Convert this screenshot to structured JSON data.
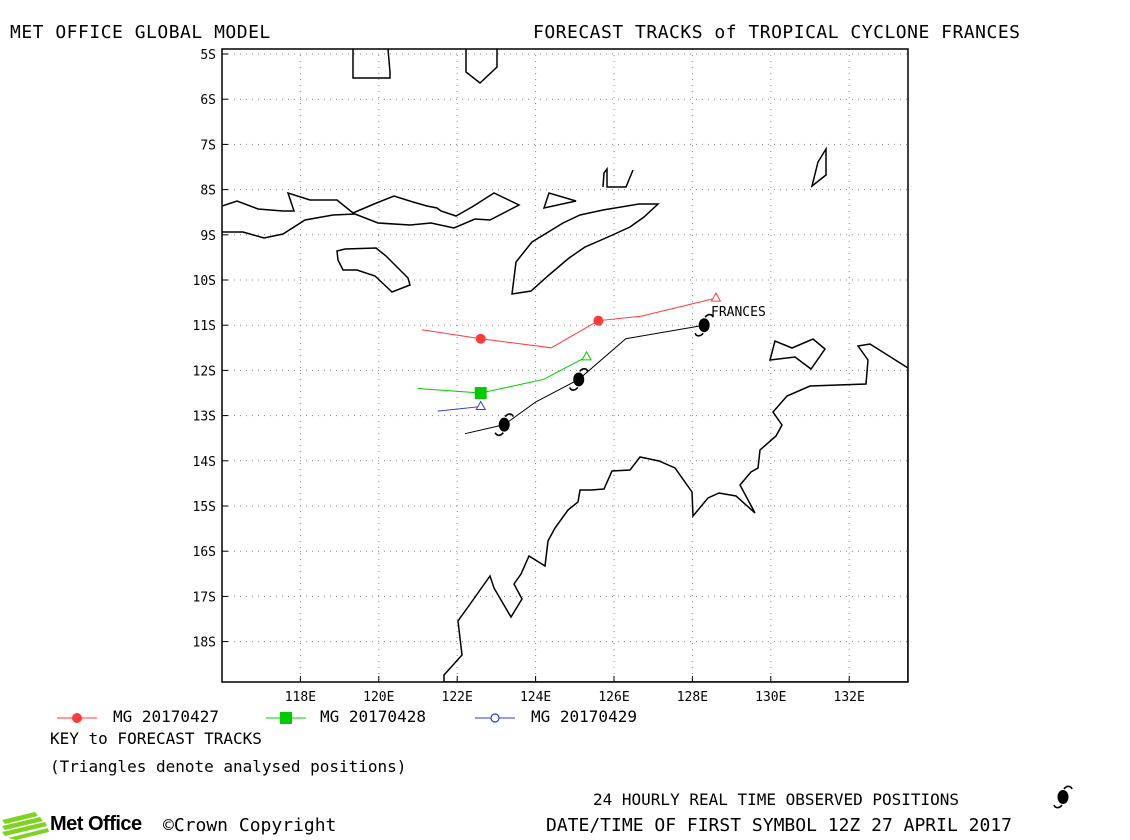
{
  "header": {
    "left_title": "MET OFFICE GLOBAL MODEL",
    "right_title": "FORECAST TRACKS of TROPICAL CYCLONE FRANCES"
  },
  "map": {
    "lon_range": [
      116,
      133.5
    ],
    "lat_range": [
      -5,
      -18.9
    ],
    "lat_ticks": [
      "5S",
      "6S",
      "7S",
      "8S",
      "9S",
      "10S",
      "11S",
      "12S",
      "13S",
      "14S",
      "15S",
      "16S",
      "17S",
      "18S"
    ],
    "lon_ticks": [
      "118E",
      "120E",
      "122E",
      "124E",
      "126E",
      "128E",
      "130E",
      "132E"
    ],
    "grid": "dotted",
    "storm_label": "FRANCES",
    "colors": {
      "mg20170427": "#ff3b3b",
      "mg20170428": "#00cc00",
      "mg20170429": "#2a3fd6",
      "observed": "#000000"
    },
    "observed_track": [
      {
        "lon": 122.2,
        "lat": -13.4
      },
      {
        "lon": 123.2,
        "lat": -13.2
      },
      {
        "lon": 124.0,
        "lat": -12.7
      },
      {
        "lon": 125.1,
        "lat": -12.2
      },
      {
        "lon": 126.3,
        "lat": -11.3
      },
      {
        "lon": 128.3,
        "lat": -11.0
      }
    ],
    "observed_symbols": [
      {
        "lon": 123.2,
        "lat": -13.2
      },
      {
        "lon": 125.1,
        "lat": -12.2
      },
      {
        "lon": 128.3,
        "lat": -11.0
      }
    ],
    "forecast_tracks": [
      {
        "name": "MG 20170427",
        "marker": "circle",
        "color_key": "mg20170427",
        "analysed": {
          "lon": 128.6,
          "lat": -10.4
        },
        "points": [
          {
            "lon": 128.6,
            "lat": -10.4
          },
          {
            "lon": 126.7,
            "lat": -10.8
          },
          {
            "lon": 125.6,
            "lat": -10.9
          },
          {
            "lon": 124.4,
            "lat": -11.5
          },
          {
            "lon": 122.6,
            "lat": -11.3
          },
          {
            "lon": 121.1,
            "lat": -11.1
          }
        ],
        "markers": [
          {
            "lon": 125.6,
            "lat": -10.9
          },
          {
            "lon": 122.6,
            "lat": -11.3
          }
        ]
      },
      {
        "name": "MG 20170428",
        "marker": "square",
        "color_key": "mg20170428",
        "analysed": {
          "lon": 125.3,
          "lat": -11.7
        },
        "points": [
          {
            "lon": 125.3,
            "lat": -11.7
          },
          {
            "lon": 124.2,
            "lat": -12.2
          },
          {
            "lon": 122.6,
            "lat": -12.5
          },
          {
            "lon": 121.0,
            "lat": -12.4
          }
        ],
        "markers": [
          {
            "lon": 122.6,
            "lat": -12.5
          }
        ]
      },
      {
        "name": "MG 20170429",
        "marker": "circle-open",
        "color_key": "mg20170429",
        "analysed": {
          "lon": 122.6,
          "lat": -12.8
        },
        "points": [
          {
            "lon": 122.6,
            "lat": -12.8
          },
          {
            "lon": 121.5,
            "lat": -12.9
          }
        ],
        "markers": []
      }
    ]
  },
  "legend": {
    "items": [
      {
        "label": "MG 20170427",
        "marker": "circle",
        "color_key": "mg20170427"
      },
      {
        "label": "MG 20170428",
        "marker": "square",
        "color_key": "mg20170428"
      },
      {
        "label": "MG 20170429",
        "marker": "circle-open",
        "color_key": "mg20170429"
      }
    ],
    "key_title": "KEY to FORECAST TRACKS",
    "key_note": "(Triangles denote analysed positions)"
  },
  "footer": {
    "logo_text": "Met Office",
    "copyright": "©Crown Copyright",
    "observed_label": "24 HOURLY REAL TIME OBSERVED POSITIONS",
    "datetime_label": "DATE/TIME OF FIRST SYMBOL 12Z 27 APRIL 2017"
  }
}
